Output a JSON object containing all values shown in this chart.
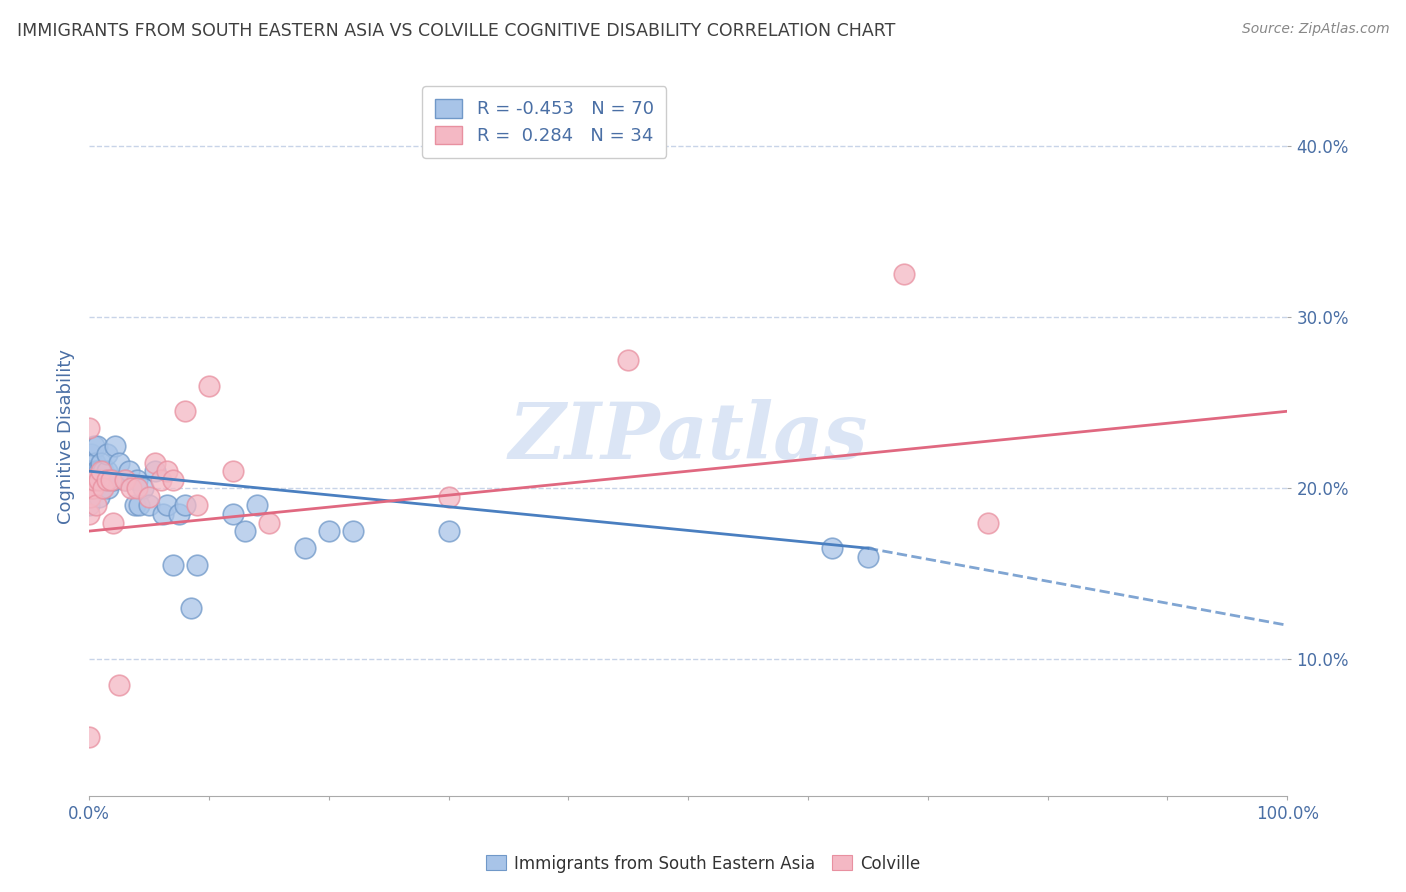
{
  "title": "IMMIGRANTS FROM SOUTH EASTERN ASIA VS COLVILLE COGNITIVE DISABILITY CORRELATION CHART",
  "source": "Source: ZipAtlas.com",
  "ylabel": "Cognitive Disability",
  "xlim": [
    0,
    1.0
  ],
  "ylim": [
    0.02,
    0.44
  ],
  "yticks": [
    0.1,
    0.2,
    0.3,
    0.4
  ],
  "ytick_labels": [
    "10.0%",
    "20.0%",
    "30.0%",
    "40.0%"
  ],
  "xticks": [
    0.0,
    0.1,
    0.2,
    0.3,
    0.4,
    0.5,
    0.6,
    0.7,
    0.8,
    0.9,
    1.0
  ],
  "xtick_labels": [
    "0.0%",
    "",
    "",
    "",
    "",
    "",
    "",
    "",
    "",
    "",
    "100.0%"
  ],
  "blue_R": -0.453,
  "blue_N": 70,
  "pink_R": 0.284,
  "pink_N": 34,
  "blue_color": "#a8c4e8",
  "pink_color": "#f4b8c4",
  "blue_scatter_edge": "#7098c8",
  "pink_scatter_edge": "#e890a0",
  "blue_line_color": "#4a7fc0",
  "pink_line_color": "#e06880",
  "watermark": "ZIPatlas",
  "background_color": "#ffffff",
  "grid_color": "#c8d4e8",
  "title_color": "#404040",
  "label_color": "#4a6fa5",
  "legend_text_color": "#4a6fa5",
  "blue_scatter_x": [
    0.0,
    0.0,
    0.0,
    0.0,
    0.0,
    0.0,
    0.0,
    0.0,
    0.0,
    0.001,
    0.001,
    0.001,
    0.001,
    0.001,
    0.002,
    0.002,
    0.002,
    0.002,
    0.003,
    0.003,
    0.003,
    0.003,
    0.004,
    0.004,
    0.005,
    0.005,
    0.005,
    0.006,
    0.006,
    0.007,
    0.007,
    0.008,
    0.008,
    0.009,
    0.01,
    0.01,
    0.011,
    0.012,
    0.013,
    0.015,
    0.015,
    0.016,
    0.018,
    0.02,
    0.022,
    0.025,
    0.03,
    0.033,
    0.038,
    0.04,
    0.042,
    0.045,
    0.05,
    0.055,
    0.062,
    0.065,
    0.07,
    0.075,
    0.08,
    0.085,
    0.09,
    0.12,
    0.13,
    0.14,
    0.18,
    0.2,
    0.22,
    0.3,
    0.62,
    0.65
  ],
  "blue_scatter_y": [
    0.205,
    0.21,
    0.21,
    0.2,
    0.205,
    0.2,
    0.195,
    0.19,
    0.205,
    0.2,
    0.205,
    0.21,
    0.2,
    0.2,
    0.205,
    0.22,
    0.21,
    0.205,
    0.2,
    0.205,
    0.205,
    0.21,
    0.225,
    0.21,
    0.215,
    0.205,
    0.2,
    0.21,
    0.2,
    0.21,
    0.225,
    0.21,
    0.195,
    0.2,
    0.215,
    0.2,
    0.2,
    0.21,
    0.205,
    0.21,
    0.22,
    0.2,
    0.205,
    0.205,
    0.225,
    0.215,
    0.205,
    0.21,
    0.19,
    0.205,
    0.19,
    0.2,
    0.19,
    0.21,
    0.185,
    0.19,
    0.155,
    0.185,
    0.19,
    0.13,
    0.155,
    0.185,
    0.175,
    0.19,
    0.165,
    0.175,
    0.175,
    0.175,
    0.165,
    0.16
  ],
  "pink_scatter_x": [
    0.0,
    0.0,
    0.0,
    0.0,
    0.001,
    0.001,
    0.002,
    0.003,
    0.004,
    0.006,
    0.008,
    0.01,
    0.012,
    0.015,
    0.018,
    0.02,
    0.025,
    0.03,
    0.035,
    0.04,
    0.05,
    0.055,
    0.06,
    0.065,
    0.07,
    0.08,
    0.09,
    0.1,
    0.12,
    0.15,
    0.3,
    0.45,
    0.68,
    0.75
  ],
  "pink_scatter_y": [
    0.235,
    0.2,
    0.185,
    0.055,
    0.195,
    0.205,
    0.2,
    0.2,
    0.205,
    0.19,
    0.205,
    0.21,
    0.2,
    0.205,
    0.205,
    0.18,
    0.085,
    0.205,
    0.2,
    0.2,
    0.195,
    0.215,
    0.205,
    0.21,
    0.205,
    0.245,
    0.19,
    0.26,
    0.21,
    0.18,
    0.195,
    0.275,
    0.325,
    0.18
  ],
  "blue_line_x0": 0.0,
  "blue_line_x1": 0.65,
  "blue_line_x_dash": 0.65,
  "blue_line_x_end": 1.0,
  "blue_line_y0": 0.21,
  "blue_line_y1": 0.165,
  "blue_line_y_dash_end": 0.12,
  "pink_line_x0": 0.0,
  "pink_line_x1": 1.0,
  "pink_line_y0": 0.175,
  "pink_line_y1": 0.245
}
